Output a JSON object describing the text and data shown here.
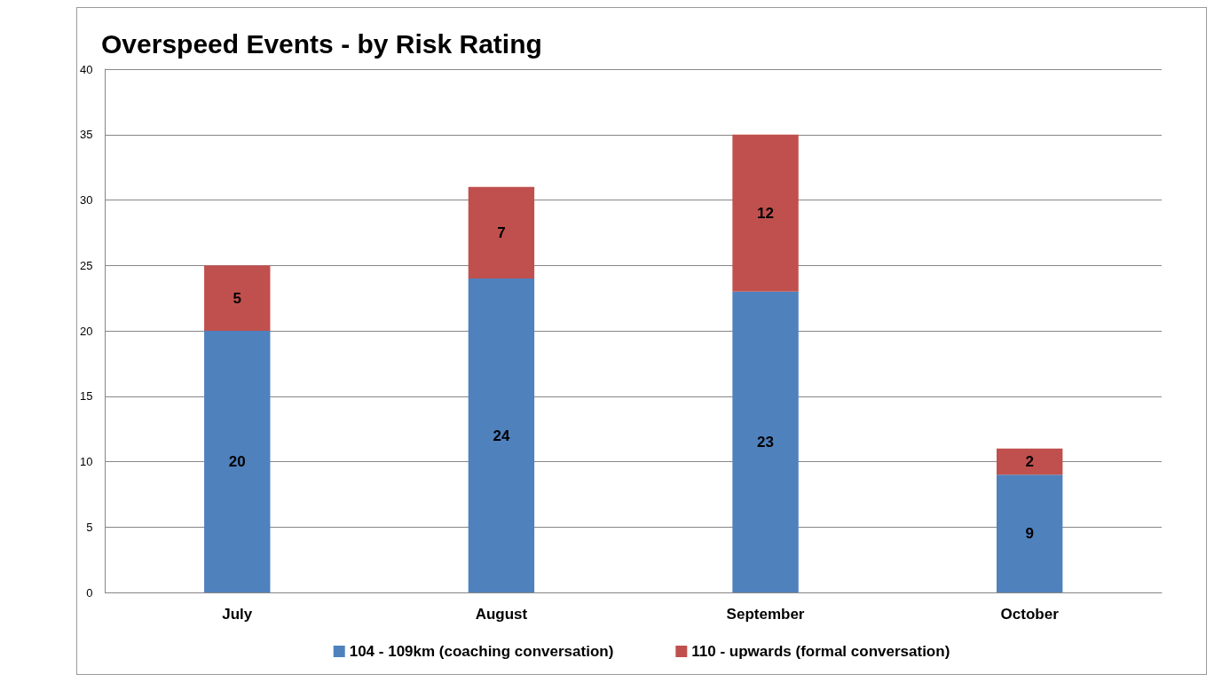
{
  "chart_data": {
    "type": "bar",
    "title": "Overspeed Events - by Risk Rating",
    "categories": [
      "July",
      "August",
      "September",
      "October"
    ],
    "stacked": true,
    "series": [
      {
        "name": "104 - 109km (coaching conversation)",
        "color": "#4f81bd",
        "values": [
          20,
          24,
          23,
          9
        ]
      },
      {
        "name": "110 - upwards (formal conversation)",
        "color": "#c0504d",
        "values": [
          5,
          7,
          12,
          2
        ]
      }
    ],
    "ylim": [
      0,
      40
    ],
    "yticks": [
      0,
      5,
      10,
      15,
      20,
      25,
      30,
      35,
      40
    ],
    "grid": "y",
    "legend": "bottom",
    "data_labels": true
  }
}
